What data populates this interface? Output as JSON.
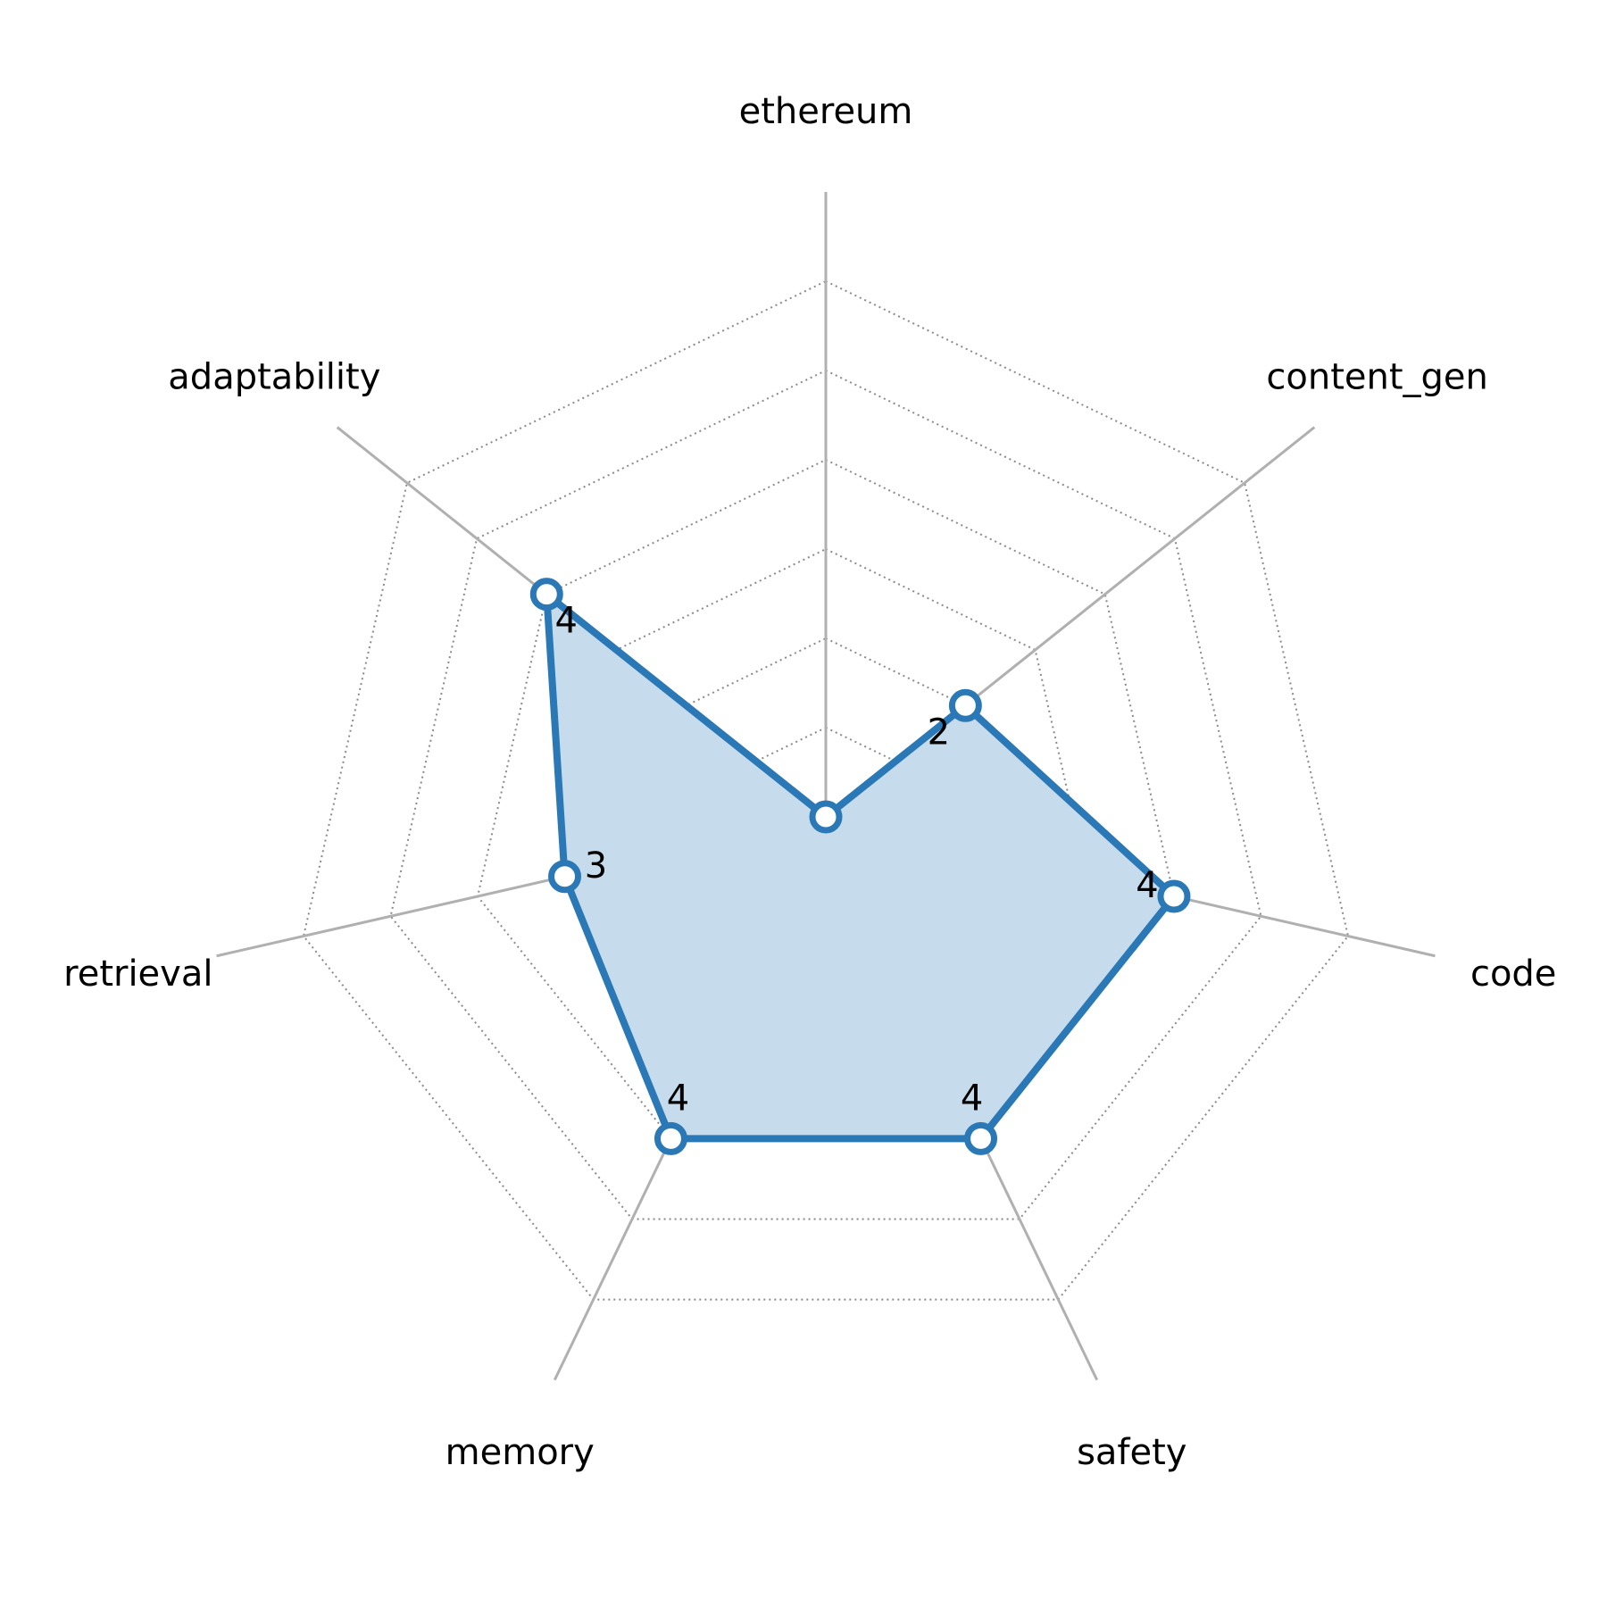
{
  "chart_data": {
    "type": "radar",
    "categories": [
      "ethereum",
      "content_gen",
      "code",
      "safety",
      "memory",
      "retrieval",
      "adaptability"
    ],
    "series": [
      {
        "values": [
          0,
          2,
          4,
          4,
          4,
          3,
          4
        ]
      }
    ],
    "value_labels": [
      "",
      "2",
      "4",
      "4",
      "4",
      "3",
      "4"
    ],
    "rmax": 6,
    "ring_count": 6,
    "grid": true,
    "colors": {
      "series_line": "#2a78b5",
      "series_fill": "#c6dbec",
      "marker_fill": "#ffffff",
      "spoke": "#b0b0b0",
      "ring": "#8a8a8a"
    }
  }
}
